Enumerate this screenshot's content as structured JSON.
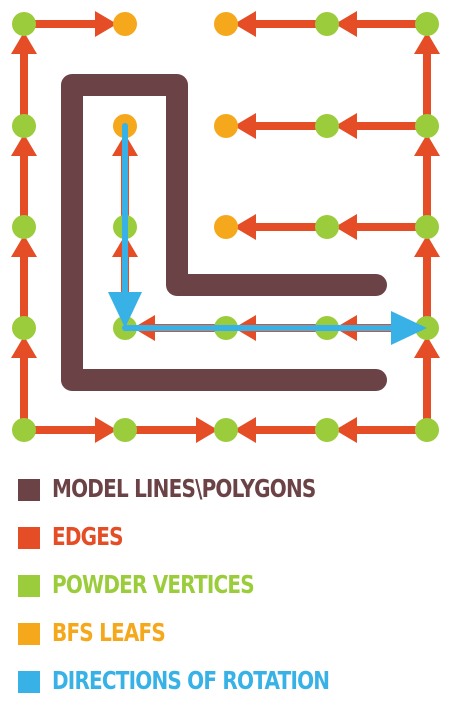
{
  "colors": {
    "model": "#6b4347",
    "edges": "#e44d26",
    "powder": "#9bcc3b",
    "leaf": "#f5a81c",
    "rotation": "#38b2e6"
  },
  "legend": [
    {
      "label": "MODEL LINES\\POLYGONS",
      "color_key": "model",
      "swatch_color": "#6b4347"
    },
    {
      "label": "EDGES",
      "color_key": "edges",
      "swatch_color": "#e44d26"
    },
    {
      "label": "POWDER VERTICES",
      "color_key": "powder",
      "swatch_color": "#9bcc3b"
    },
    {
      "label": "BFS LEAFS",
      "color_key": "leaf",
      "swatch_color": "#f5a81c"
    },
    {
      "label": "DIRECTIONS OF ROTATION",
      "color_key": "rotation",
      "swatch_color": "#38b2e6"
    }
  ],
  "graph": {
    "vertices": [
      {
        "id": "c0r0",
        "col": 0,
        "row": 0,
        "kind": "powder"
      },
      {
        "id": "c1r0",
        "col": 1,
        "row": 0,
        "kind": "leaf"
      },
      {
        "id": "c2r0",
        "col": 2,
        "row": 0,
        "kind": "leaf"
      },
      {
        "id": "c3r0",
        "col": 3,
        "row": 0,
        "kind": "powder"
      },
      {
        "id": "c4r0",
        "col": 4,
        "row": 0,
        "kind": "powder"
      },
      {
        "id": "c0r1",
        "col": 0,
        "row": 1,
        "kind": "powder"
      },
      {
        "id": "c1r1",
        "col": 1,
        "row": 1,
        "kind": "leaf"
      },
      {
        "id": "c2r1",
        "col": 2,
        "row": 1,
        "kind": "leaf"
      },
      {
        "id": "c3r1",
        "col": 3,
        "row": 1,
        "kind": "powder"
      },
      {
        "id": "c4r1",
        "col": 4,
        "row": 1,
        "kind": "powder"
      },
      {
        "id": "c0r2",
        "col": 0,
        "row": 2,
        "kind": "powder"
      },
      {
        "id": "c1r2",
        "col": 1,
        "row": 2,
        "kind": "powder"
      },
      {
        "id": "c2r2",
        "col": 2,
        "row": 2,
        "kind": "leaf"
      },
      {
        "id": "c3r2",
        "col": 3,
        "row": 2,
        "kind": "powder"
      },
      {
        "id": "c4r2",
        "col": 4,
        "row": 2,
        "kind": "powder"
      },
      {
        "id": "c0r3",
        "col": 0,
        "row": 3,
        "kind": "powder"
      },
      {
        "id": "c1r3",
        "col": 1,
        "row": 3,
        "kind": "powder"
      },
      {
        "id": "c2r3",
        "col": 2,
        "row": 3,
        "kind": "powder"
      },
      {
        "id": "c3r3",
        "col": 3,
        "row": 3,
        "kind": "powder"
      },
      {
        "id": "c4r3",
        "col": 4,
        "row": 3,
        "kind": "powder"
      },
      {
        "id": "c0r4",
        "col": 0,
        "row": 4,
        "kind": "powder"
      },
      {
        "id": "c1r4",
        "col": 1,
        "row": 4,
        "kind": "powder"
      },
      {
        "id": "c2r4",
        "col": 2,
        "row": 4,
        "kind": "powder"
      },
      {
        "id": "c3r4",
        "col": 3,
        "row": 4,
        "kind": "powder"
      },
      {
        "id": "c4r4",
        "col": 4,
        "row": 4,
        "kind": "powder"
      }
    ],
    "edges": [
      {
        "from": "c0r4",
        "to": "c1r4"
      },
      {
        "from": "c1r4",
        "to": "c2r4"
      },
      {
        "from": "c3r4",
        "to": "c2r4"
      },
      {
        "from": "c4r4",
        "to": "c3r4"
      },
      {
        "from": "c0r4",
        "to": "c0r3"
      },
      {
        "from": "c0r3",
        "to": "c0r2"
      },
      {
        "from": "c0r2",
        "to": "c0r1"
      },
      {
        "from": "c0r1",
        "to": "c0r0"
      },
      {
        "from": "c0r0",
        "to": "c1r0"
      },
      {
        "from": "c4r4",
        "to": "c4r3"
      },
      {
        "from": "c4r3",
        "to": "c4r2"
      },
      {
        "from": "c4r2",
        "to": "c4r1"
      },
      {
        "from": "c4r1",
        "to": "c4r0"
      },
      {
        "from": "c4r0",
        "to": "c3r0"
      },
      {
        "from": "c3r0",
        "to": "c2r0"
      },
      {
        "from": "c4r1",
        "to": "c3r1"
      },
      {
        "from": "c3r1",
        "to": "c2r1"
      },
      {
        "from": "c4r2",
        "to": "c3r2"
      },
      {
        "from": "c3r2",
        "to": "c2r2"
      },
      {
        "from": "c4r3",
        "to": "c3r3"
      },
      {
        "from": "c3r3",
        "to": "c2r3"
      },
      {
        "from": "c2r3",
        "to": "c1r3"
      },
      {
        "from": "c1r3",
        "to": "c1r2"
      },
      {
        "from": "c1r2",
        "to": "c1r1"
      }
    ],
    "rotation_paths": [
      {
        "from": "c1r1",
        "to": "c1r3"
      },
      {
        "from": "c1r3",
        "to": "c4r3"
      }
    ]
  }
}
